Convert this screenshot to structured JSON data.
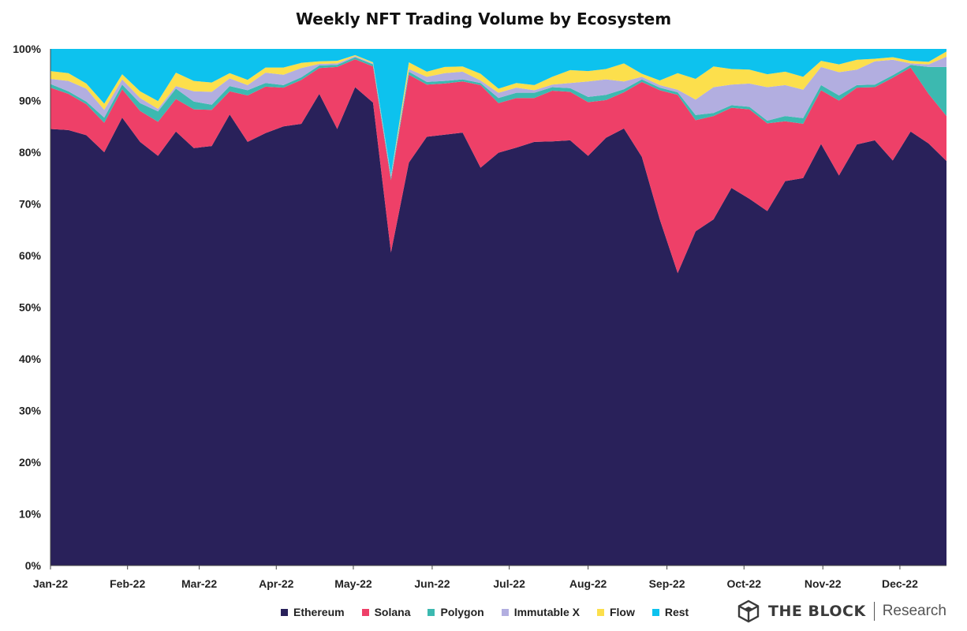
{
  "chart_data": {
    "type": "area",
    "stacked": true,
    "normalized": true,
    "title": "Weekly NFT Trading Volume by Ecosystem",
    "xlabel": "",
    "ylabel": "",
    "ylim": [
      0,
      100
    ],
    "y_ticks": [
      "0%",
      "10%",
      "20%",
      "30%",
      "40%",
      "50%",
      "60%",
      "70%",
      "80%",
      "90%",
      "100%"
    ],
    "x_ticks": [
      {
        "label": "Jan-22",
        "week": 0
      },
      {
        "label": "Feb-22",
        "week": 4.3
      },
      {
        "label": "Mar-22",
        "week": 8.3
      },
      {
        "label": "Apr-22",
        "week": 12.6
      },
      {
        "label": "May-22",
        "week": 16.9
      },
      {
        "label": "Jun-22",
        "week": 21.3
      },
      {
        "label": "Jul-22",
        "week": 25.6
      },
      {
        "label": "Aug-22",
        "week": 30.0
      },
      {
        "label": "Sep-22",
        "week": 34.4
      },
      {
        "label": "Oct-22",
        "week": 38.7
      },
      {
        "label": "Nov-22",
        "week": 43.1
      },
      {
        "label": "Dec-22",
        "week": 47.4
      }
    ],
    "legend_position": "bottom",
    "series": [
      {
        "name": "Ethereum",
        "color": "#29215a",
        "values": [
          84.5,
          84.3,
          83.3,
          80.0,
          86.7,
          82.0,
          79.3,
          84.0,
          80.8,
          81.2,
          87.3,
          82.0,
          83.7,
          85.0,
          85.5,
          91.3,
          84.5,
          92.6,
          89.6,
          60.6,
          78.0,
          83.0,
          83.4,
          83.8,
          77.0,
          79.9,
          80.9,
          82.0,
          82.1,
          82.3,
          79.3,
          82.8,
          84.6,
          79.1,
          67.0,
          56.6,
          64.7,
          67.0,
          73.1,
          71.0,
          68.6,
          74.4,
          75.0,
          81.6,
          75.5,
          81.5,
          82.3,
          78.4,
          84.0,
          81.7,
          78.3
        ]
      },
      {
        "name": "Solana",
        "color": "#ee4068",
        "values": [
          8.0,
          7.0,
          6.0,
          5.7,
          5.5,
          6.0,
          6.6,
          6.3,
          7.5,
          7.0,
          4.5,
          9.0,
          9.0,
          7.5,
          8.5,
          5.0,
          12.0,
          5.4,
          7.0,
          14.0,
          17.0,
          10.1,
          9.9,
          9.9,
          16.0,
          9.6,
          9.6,
          8.5,
          9.8,
          9.4,
          10.4,
          7.3,
          7.0,
          14.5,
          25.0,
          34.5,
          21.5,
          20.0,
          15.5,
          17.3,
          17.0,
          11.6,
          10.5,
          10.4,
          14.5,
          11.0,
          10.3,
          16.0,
          12.4,
          9.6,
          8.7
        ]
      },
      {
        "name": "Polygon",
        "color": "#3cb9b0",
        "values": [
          0.7,
          0.5,
          0.5,
          1.0,
          0.9,
          1.5,
          2.0,
          2.0,
          1.5,
          1.0,
          1.0,
          1.0,
          0.7,
          0.5,
          0.5,
          0.5,
          0.4,
          0.4,
          0.4,
          0.5,
          0.6,
          0.5,
          0.5,
          0.4,
          0.4,
          1.0,
          1.0,
          1.0,
          0.7,
          0.7,
          1.0,
          1.0,
          0.6,
          0.5,
          0.5,
          0.5,
          1.0,
          0.6,
          0.5,
          0.5,
          0.5,
          1.0,
          1.1,
          1.0,
          1.0,
          0.5,
          0.5,
          0.5,
          0.5,
          5.2,
          9.5
        ]
      },
      {
        "name": "Immutable X",
        "color": "#b2aee0",
        "values": [
          1.0,
          2.0,
          2.5,
          1.5,
          1.0,
          1.0,
          0.5,
          0.5,
          2.0,
          2.5,
          1.5,
          1.0,
          2.0,
          2.0,
          1.8,
          0.3,
          0.3,
          0.2,
          0.2,
          0.4,
          0.5,
          1.0,
          1.5,
          1.5,
          0.5,
          1.0,
          1.0,
          0.5,
          0.5,
          1.0,
          3.0,
          3.0,
          1.5,
          0.5,
          0.5,
          0.5,
          3.0,
          5.0,
          4.0,
          4.5,
          6.5,
          6.0,
          5.5,
          3.5,
          4.5,
          3.0,
          4.5,
          3.0,
          0.3,
          0.5,
          2.0
        ]
      },
      {
        "name": "Flow",
        "color": "#fcdf4c",
        "values": [
          1.5,
          1.5,
          1.0,
          1.2,
          1.0,
          1.3,
          1.5,
          2.6,
          2.0,
          1.8,
          1.0,
          1.0,
          1.0,
          1.4,
          1.0,
          0.5,
          0.5,
          0.2,
          0.2,
          0.1,
          1.3,
          1.0,
          1.2,
          1.0,
          1.3,
          0.8,
          0.9,
          1.0,
          1.5,
          2.5,
          2.0,
          2.0,
          3.5,
          0.6,
          0.9,
          3.2,
          4.0,
          4.0,
          3.0,
          2.7,
          2.5,
          2.6,
          2.5,
          1.2,
          1.5,
          1.9,
          0.5,
          0.5,
          0.5,
          0.5,
          1.0
        ]
      },
      {
        "name": "Rest",
        "color": "#0dc2ee",
        "values": [
          4.3,
          4.7,
          6.7,
          10.6,
          4.9,
          8.2,
          10.1,
          4.6,
          6.2,
          6.5,
          4.7,
          6.0,
          3.6,
          3.6,
          2.7,
          2.4,
          2.3,
          1.2,
          2.6,
          24.4,
          2.6,
          4.4,
          3.5,
          3.4,
          4.8,
          7.7,
          6.6,
          7.0,
          5.4,
          4.1,
          4.3,
          3.9,
          2.8,
          4.8,
          6.1,
          4.7,
          5.8,
          3.4,
          3.9,
          4.0,
          4.9,
          4.4,
          5.4,
          2.3,
          3.0,
          2.1,
          1.9,
          1.6,
          2.3,
          2.5,
          0.5
        ]
      }
    ]
  },
  "brand": {
    "name": "THE BLOCK",
    "suffix": "Research",
    "logo_icon": "cube-logo-icon"
  }
}
